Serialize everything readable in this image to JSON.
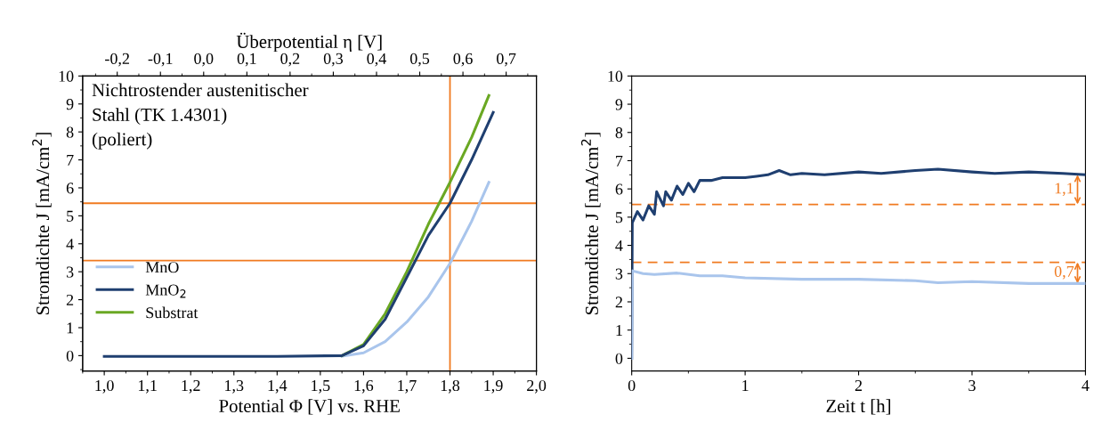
{
  "chart_data": [
    {
      "type": "line",
      "xlabel": "Potential Φ [V] vs. RHE",
      "ylabel": "Stromdichte J [mA/cm$^{2}$]",
      "x2label": "Überpotential η [V]",
      "annotations": [
        "Nichtrostender austenitischer\nStahl (TK 1.4301)\n(poliert)"
      ],
      "xlim": [
        0.95,
        2.0
      ],
      "xticks": [
        {
          "value": 1.0,
          "label": "1,0"
        },
        {
          "value": 1.1,
          "label": "1,1"
        },
        {
          "value": 1.2,
          "label": "1,2"
        },
        {
          "value": 1.3,
          "label": "1,3"
        },
        {
          "value": 1.4,
          "label": "1,4"
        },
        {
          "value": 1.5,
          "label": "1,5"
        },
        {
          "value": 1.6,
          "label": "1,6"
        },
        {
          "value": 1.7,
          "label": "1,7"
        },
        {
          "value": 1.8,
          "label": "1,8"
        },
        {
          "value": 1.9,
          "label": "1,9"
        },
        {
          "value": 2.0,
          "label": "2,0"
        }
      ],
      "x2lim": [
        -0.28,
        0.77
      ],
      "x2ticks": [
        {
          "value": -0.2,
          "label": "-0,2"
        },
        {
          "value": -0.1,
          "label": "-0,1"
        },
        {
          "value": 0.0,
          "label": "0,0"
        },
        {
          "value": 0.1,
          "label": "0,1"
        },
        {
          "value": 0.2,
          "label": "0,2"
        },
        {
          "value": 0.3,
          "label": "0,3"
        },
        {
          "value": 0.4,
          "label": "0,4"
        },
        {
          "value": 0.5,
          "label": "0,5"
        },
        {
          "value": 0.6,
          "label": "0,6"
        },
        {
          "value": 0.7,
          "label": "0,7"
        }
      ],
      "ylim": [
        -0.55,
        10
      ],
      "yticks": [
        0,
        1,
        2,
        3,
        4,
        5,
        6,
        7,
        8,
        9,
        10
      ],
      "legend": "center left",
      "grid": false,
      "ref_lines": [
        {
          "axis": "y",
          "value": 5.45,
          "color": "#f07a20",
          "line_style": "solid"
        },
        {
          "axis": "y",
          "value": 3.4,
          "color": "#f07a20",
          "line_style": "solid"
        },
        {
          "axis": "x",
          "value": 1.8,
          "color": "#f07a20",
          "line_style": "solid"
        }
      ],
      "series": [
        {
          "name": "MnO",
          "color": "#a9c5ec",
          "x": [
            1.55,
            1.6,
            1.65,
            1.7,
            1.75,
            1.8,
            1.85,
            1.89
          ],
          "values": [
            -0.02,
            0.1,
            0.5,
            1.2,
            2.1,
            3.3,
            4.8,
            6.2
          ]
        },
        {
          "name": "MnO$_{2}$",
          "color": "#1f3f70",
          "x": [
            1.0,
            1.2,
            1.4,
            1.55,
            1.6,
            1.65,
            1.7,
            1.75,
            1.8,
            1.85,
            1.9
          ],
          "values": [
            -0.03,
            -0.03,
            -0.03,
            0.0,
            0.35,
            1.3,
            2.8,
            4.3,
            5.45,
            7.0,
            8.7
          ]
        },
        {
          "name": "Substrat",
          "color": "#6aa823",
          "x": [
            1.55,
            1.6,
            1.65,
            1.7,
            1.75,
            1.8,
            1.85,
            1.89
          ],
          "values": [
            0.0,
            0.4,
            1.5,
            3.0,
            4.7,
            6.2,
            7.8,
            9.3
          ]
        }
      ]
    },
    {
      "type": "line",
      "xlabel": "Zeit t [h]",
      "ylabel": "Stromdichte J [mA/cm$^{2}$]",
      "xlim": [
        0,
        4
      ],
      "xticks": [
        0,
        1,
        2,
        3,
        4
      ],
      "ylim": [
        -0.45,
        10
      ],
      "yticks": [
        0,
        1,
        2,
        3,
        4,
        5,
        6,
        7,
        8,
        9,
        10
      ],
      "grid": false,
      "ref_lines": [
        {
          "axis": "y",
          "value": 5.45,
          "color": "#f07a20",
          "line_style": "dashed"
        },
        {
          "axis": "y",
          "value": 3.4,
          "color": "#f07a20",
          "line_style": "dashed"
        }
      ],
      "annotations": [
        {
          "text": "1,1",
          "x": 3.93,
          "y": 6.5
        },
        {
          "text": "0,7",
          "x": 3.93,
          "y": 2.65
        }
      ],
      "series": [
        {
          "color": "#1f3f70",
          "x": [
            0,
            0.005,
            0.05,
            0.1,
            0.15,
            0.2,
            0.22,
            0.28,
            0.3,
            0.35,
            0.4,
            0.45,
            0.5,
            0.55,
            0.6,
            0.7,
            0.8,
            0.9,
            1.0,
            1.1,
            1.2,
            1.3,
            1.4,
            1.5,
            1.7,
            2.0,
            2.2,
            2.5,
            2.7,
            3.0,
            3.2,
            3.5,
            3.8,
            4.0
          ],
          "values": [
            0,
            4.8,
            5.2,
            4.9,
            5.4,
            5.1,
            5.9,
            5.4,
            5.9,
            5.6,
            6.1,
            5.8,
            6.2,
            5.9,
            6.3,
            6.3,
            6.4,
            6.4,
            6.4,
            6.45,
            6.5,
            6.65,
            6.5,
            6.55,
            6.5,
            6.6,
            6.55,
            6.65,
            6.7,
            6.6,
            6.55,
            6.6,
            6.55,
            6.5
          ]
        },
        {
          "color": "#a9c5ec",
          "x": [
            0,
            0.005,
            0.1,
            0.2,
            0.4,
            0.6,
            0.8,
            1.0,
            1.5,
            2.0,
            2.5,
            2.7,
            3.0,
            3.5,
            4.0
          ],
          "values": [
            0,
            3.1,
            3.0,
            2.97,
            3.02,
            2.92,
            2.92,
            2.85,
            2.8,
            2.8,
            2.75,
            2.68,
            2.72,
            2.65,
            2.65
          ]
        }
      ]
    }
  ]
}
